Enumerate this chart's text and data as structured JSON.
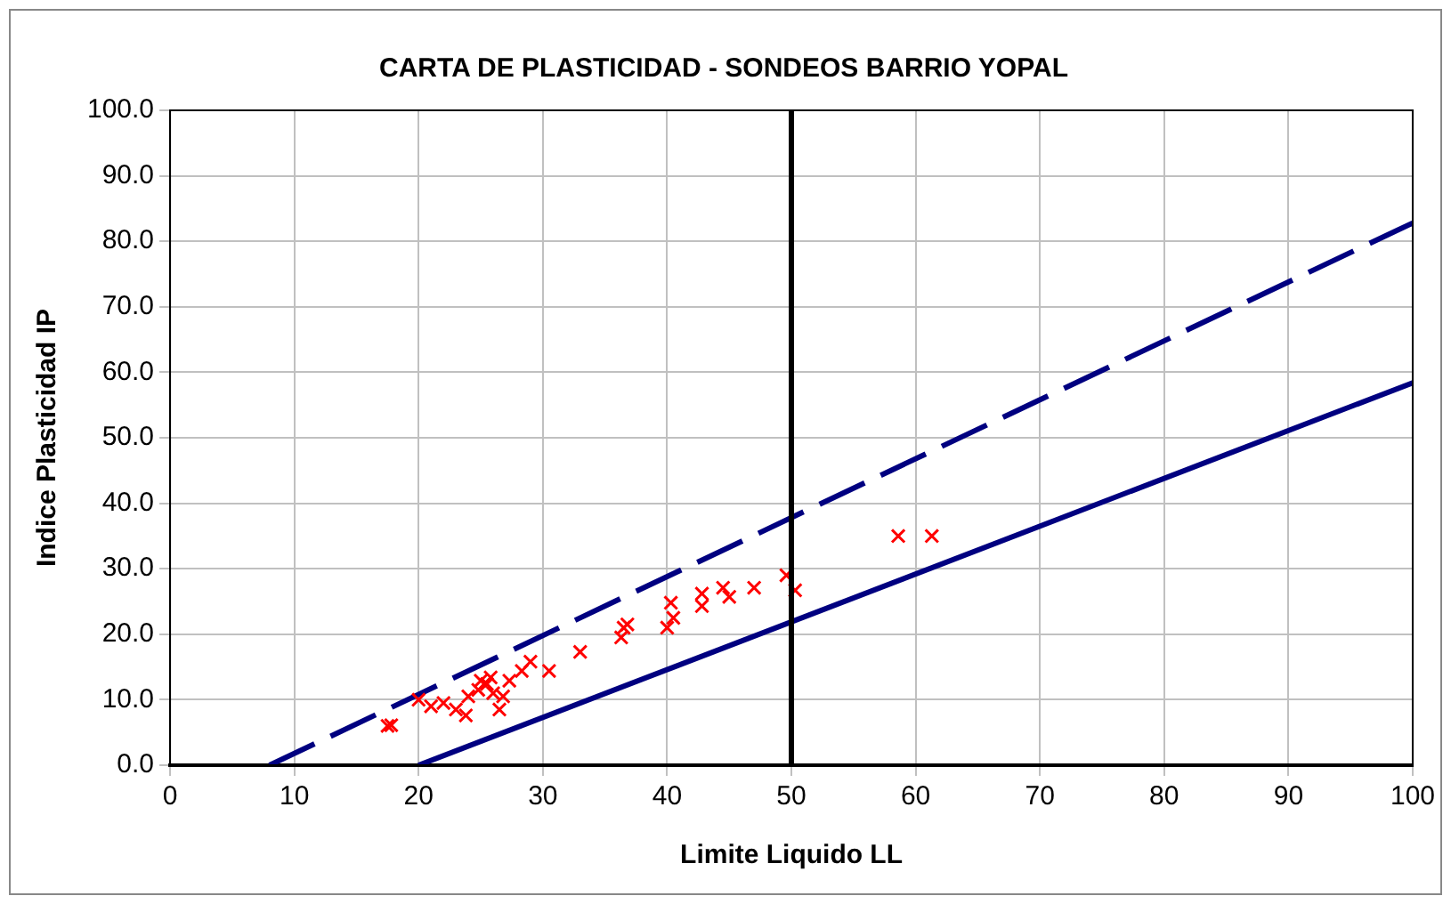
{
  "chart_data": {
    "type": "scatter",
    "title": "CARTA DE PLASTICIDAD - SONDEOS BARRIO YOPAL",
    "xlabel": "Limite Liquido LL",
    "ylabel": "Indice Plasticidad IP",
    "xlim": [
      0,
      100
    ],
    "xticks": [
      0,
      10,
      20,
      30,
      40,
      50,
      60,
      70,
      80,
      90,
      100
    ],
    "ylim": [
      0,
      100
    ],
    "yticks": [
      {
        "value": 0,
        "label": "0.0"
      },
      {
        "value": 10,
        "label": "10.0"
      },
      {
        "value": 20,
        "label": "20.0"
      },
      {
        "value": 30,
        "label": "30.0"
      },
      {
        "value": 40,
        "label": "40.0"
      },
      {
        "value": 50,
        "label": "50.0"
      },
      {
        "value": 60,
        "label": "60.0"
      },
      {
        "value": 70,
        "label": "70.0"
      },
      {
        "value": 80,
        "label": "80.0"
      },
      {
        "value": 90,
        "label": "90.0"
      },
      {
        "value": 100,
        "label": "100.0"
      }
    ],
    "grid": true,
    "legend": false,
    "ref_lines": [
      {
        "axis": "x",
        "value": 50,
        "color": "#000000",
        "line_style": "solid"
      }
    ],
    "series": [
      {
        "type": "line",
        "color": "#000080",
        "line_style": "dashed",
        "marker": "none",
        "x": [
          8,
          100
        ],
        "values": [
          0,
          82.8
        ]
      },
      {
        "type": "line",
        "color": "#000080",
        "line_style": "solid",
        "marker": "none",
        "x": [
          20,
          100
        ],
        "values": [
          0,
          58.4
        ]
      },
      {
        "type": "scatter",
        "color": "#ff0000",
        "marker": "cross",
        "x": [
          17.5,
          17.8,
          20,
          21,
          22,
          23,
          23.8,
          24,
          24.8,
          25,
          25.5,
          25.8,
          26,
          26.5,
          26.8,
          27.3,
          28.3,
          29,
          30.5,
          33,
          36.3,
          36.5,
          36.8,
          40,
          40.3,
          40.5,
          42.8,
          42.8,
          44.5,
          45,
          47,
          49.6,
          50.3,
          58.6,
          61.3
        ],
        "values": [
          6,
          6.1,
          10,
          9,
          9.5,
          8.5,
          7.6,
          10.5,
          11.5,
          12.9,
          12.4,
          13.4,
          11,
          8.5,
          10.5,
          12.9,
          14.4,
          15.8,
          14.4,
          17.3,
          19.5,
          21,
          21.5,
          21,
          24.8,
          22.5,
          26.2,
          24.3,
          27.1,
          25.7,
          27.1,
          29,
          26.7,
          35,
          35
        ]
      }
    ]
  }
}
